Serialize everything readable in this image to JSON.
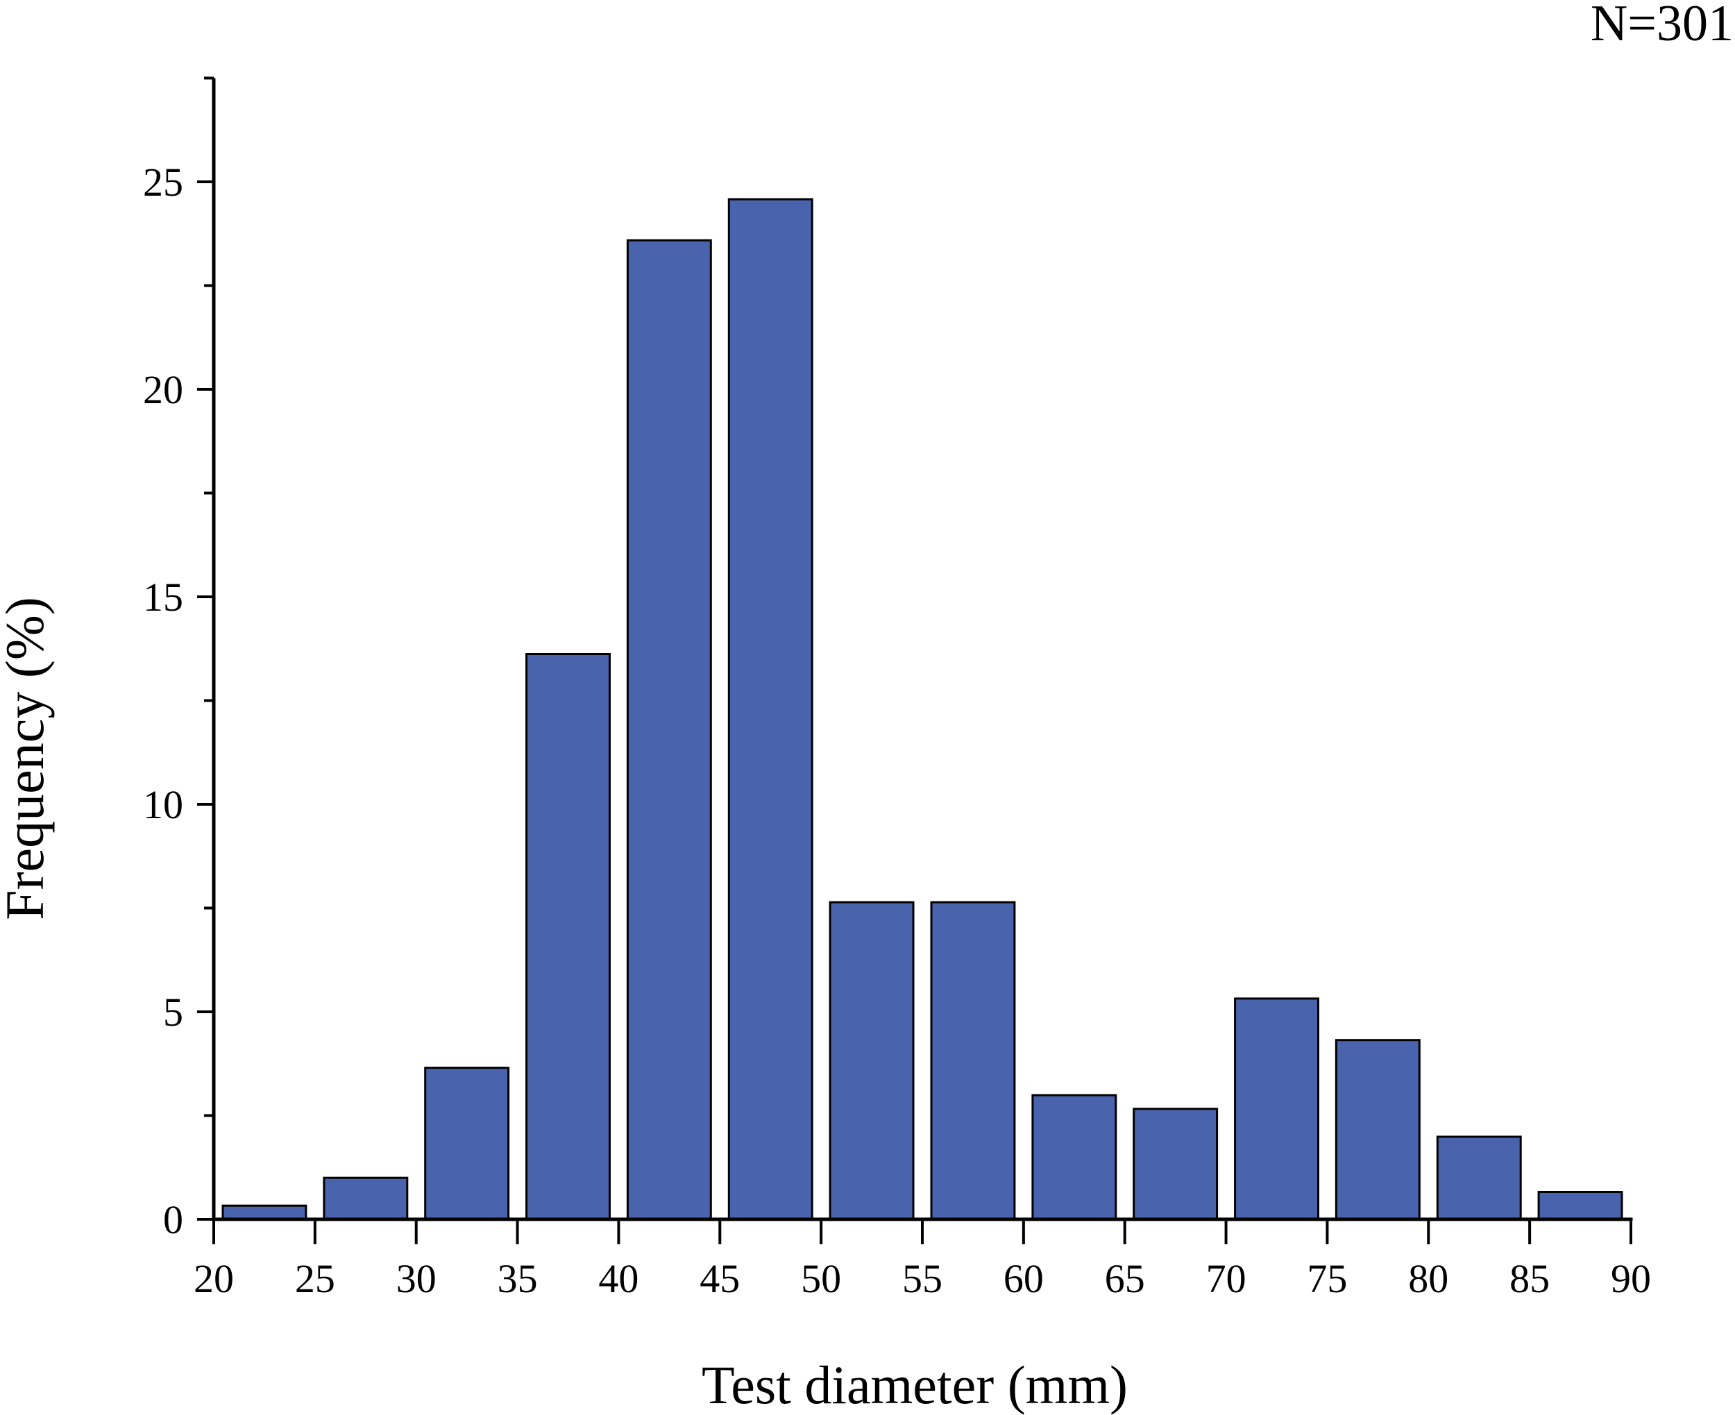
{
  "chart_data": {
    "type": "bar",
    "annotation": "N=301",
    "xlabel": "Test diameter (mm)",
    "ylabel": "Frequency (%)",
    "xlim": [
      20,
      90
    ],
    "ylim": [
      0,
      27.5
    ],
    "x_ticks": [
      20,
      25,
      30,
      35,
      40,
      45,
      50,
      55,
      60,
      65,
      70,
      75,
      80,
      85,
      90
    ],
    "y_ticks": [
      0,
      5,
      10,
      15,
      20,
      25
    ],
    "grid": false,
    "bars": [
      {
        "from": 20,
        "to": 25,
        "value": 0.33
      },
      {
        "from": 25,
        "to": 30,
        "value": 1.0
      },
      {
        "from": 30,
        "to": 35,
        "value": 3.65
      },
      {
        "from": 35,
        "to": 40,
        "value": 13.62
      },
      {
        "from": 40,
        "to": 45,
        "value": 23.59
      },
      {
        "from": 45,
        "to": 50,
        "value": 24.58
      },
      {
        "from": 50,
        "to": 55,
        "value": 7.64
      },
      {
        "from": 55,
        "to": 60,
        "value": 7.64
      },
      {
        "from": 60,
        "to": 65,
        "value": 2.99
      },
      {
        "from": 65,
        "to": 70,
        "value": 2.66
      },
      {
        "from": 70,
        "to": 75,
        "value": 5.32
      },
      {
        "from": 75,
        "to": 80,
        "value": 4.32
      },
      {
        "from": 80,
        "to": 85,
        "value": 1.99
      },
      {
        "from": 85,
        "to": 90,
        "value": 0.66
      }
    ],
    "bar_color": "#4A63AD",
    "bar_edge_color": "#000000"
  }
}
